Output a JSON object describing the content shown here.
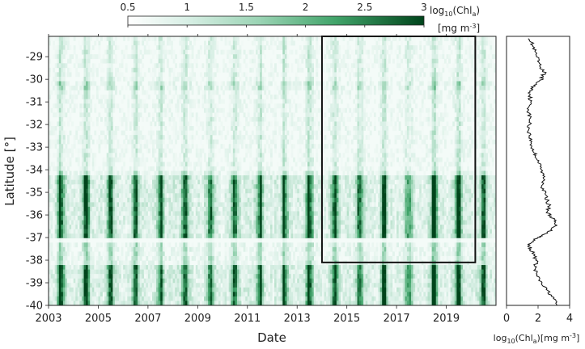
{
  "chart_data": [
    {
      "type": "heatmap",
      "xlabel": "Date",
      "ylabel": "Latitude [°]",
      "x_range": [
        "2003-01",
        "2021-01"
      ],
      "y_range": [
        -40,
        -28.1
      ],
      "x_tick_labels": [
        "2003",
        "2005",
        "2007",
        "2009",
        "2011",
        "2013",
        "2015",
        "2017",
        "2019"
      ],
      "y_tick_labels": [
        "-29",
        "-30",
        "-31",
        "-32",
        "-33",
        "-34",
        "-35",
        "-36",
        "-37",
        "-38",
        "-39",
        "-40"
      ],
      "colorbar": {
        "label_main": "log",
        "label_sub": "10",
        "label_paren": "(Chl",
        "label_a": "a",
        "label_close": ")",
        "units_main": "[mg m",
        "units_exp": "-3",
        "units_close": "]",
        "tick_labels": [
          "0.5",
          "1",
          "1.5",
          "2",
          "2.5",
          "3"
        ],
        "range": [
          0.5,
          3
        ],
        "color_low": "#ffffff",
        "color_high": "#00441b"
      },
      "highlight_box": {
        "x_start": "2014-01",
        "x_end": "2020-03",
        "lat_top": -28.1,
        "lat_bottom": -38.1
      },
      "band_structure": {
        "high_chl_lat_ranges": [
          [
            -40,
            -38.2
          ],
          [
            -37,
            -34.2
          ]
        ],
        "low_chl_lat_ranges": [
          [
            -34,
            -30.5
          ],
          [
            -30,
            -28.1
          ]
        ],
        "notes_gap_lat": -37.2,
        "seasonal_peak_month": "mid-year (austral winter)"
      }
    },
    {
      "type": "line",
      "xlabel_main": "log",
      "xlabel_sub": "10",
      "xlabel_paren": "(Chl",
      "xlabel_a": "a",
      "xlabel_units": ")[mg m",
      "xlabel_exp": "-3",
      "xlabel_close": "]",
      "x_tick_labels": [
        "0",
        "2",
        "4"
      ],
      "xlim": [
        0,
        4
      ],
      "ylim": [
        -40,
        -28.1
      ],
      "profile": {
        "lat": [
          -28.2,
          -28.6,
          -29.0,
          -29.4,
          -29.7,
          -30.0,
          -30.3,
          -30.6,
          -31.0,
          -31.4,
          -31.8,
          -32.2,
          -32.6,
          -33.0,
          -33.3,
          -33.6,
          -34.0,
          -34.4,
          -34.8,
          -35.2,
          -35.6,
          -35.9,
          -36.2,
          -36.5,
          -36.8,
          -37.0,
          -37.3,
          -37.6,
          -38.0,
          -38.4,
          -38.8,
          -39.2,
          -39.6,
          -40.0
        ],
        "value": [
          1.5,
          1.7,
          1.9,
          2.1,
          2.4,
          2.2,
          1.7,
          1.5,
          1.5,
          1.4,
          1.5,
          1.4,
          1.5,
          1.6,
          1.8,
          2.0,
          2.2,
          2.4,
          2.3,
          2.5,
          2.7,
          2.6,
          3.0,
          3.1,
          2.6,
          2.0,
          1.4,
          1.6,
          1.9,
          1.8,
          2.0,
          2.4,
          2.9,
          3.2
        ]
      }
    }
  ]
}
